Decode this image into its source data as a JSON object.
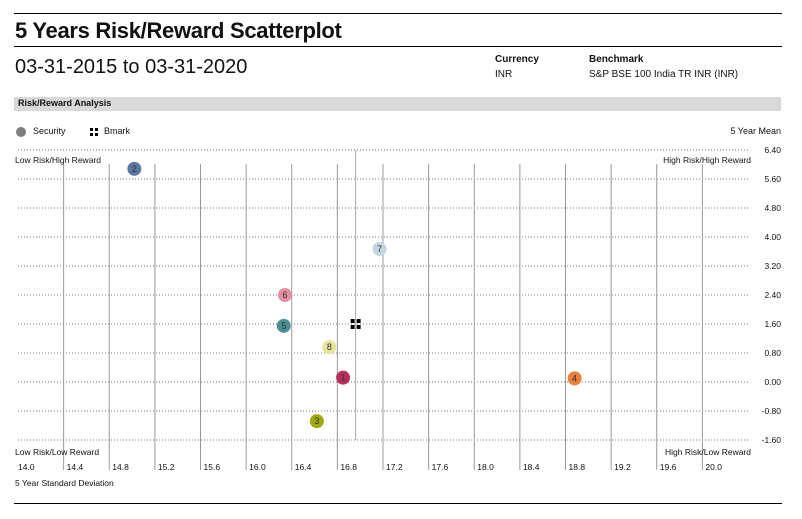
{
  "header": {
    "title": "5 Years Risk/Reward Scatterplot",
    "date_range": "03-31-2015 to 03-31-2020",
    "currency_label": "Currency",
    "currency_value": "INR",
    "benchmark_label": "Benchmark",
    "benchmark_value": "S&P BSE 100 India TR INR (INR)"
  },
  "section": {
    "title": "Risk/Reward Analysis"
  },
  "legend": {
    "security_label": "Security",
    "bmark_label": "Bmark",
    "mean_label": "5 Year Mean"
  },
  "colors": {
    "grid": "#777777",
    "mean_line": "#aaaaaa",
    "security_legend": "#7f7f7f",
    "bmark": "#000000"
  },
  "chart_data": {
    "type": "scatter",
    "xlabel": "5 Year Standard Deviation",
    "ylabel": "",
    "xlim": [
      14.0,
      20.4
    ],
    "ylim": [
      -1.6,
      6.4
    ],
    "x_ticks": [
      "14.0",
      "14.4",
      "14.8",
      "15.2",
      "15.6",
      "16.0",
      "16.4",
      "16.8",
      "17.2",
      "17.6",
      "18.0",
      "18.4",
      "18.8",
      "19.2",
      "19.6",
      "20.0"
    ],
    "y_ticks": [
      "6.40",
      "5.60",
      "4.80",
      "4.00",
      "3.20",
      "2.40",
      "1.60",
      "0.80",
      "0.00",
      "-0.80",
      "-1.60"
    ],
    "quadrant_labels": {
      "top_left": "Low Risk/High Reward",
      "top_right": "High Risk/High Reward",
      "bottom_left": "Low Risk/Low Reward",
      "bottom_right": "High Risk/Low Reward"
    },
    "mean_lines": {
      "x": 16.96,
      "y": 1.6
    },
    "benchmark": {
      "x": 16.96,
      "y": 1.6
    },
    "series": [
      {
        "points": [
          {
            "label": "1",
            "x": 16.85,
            "y": 0.12,
            "color": "#b5305f"
          },
          {
            "label": "2",
            "x": 15.02,
            "y": 5.88,
            "color": "#5b78a3"
          },
          {
            "label": "3",
            "x": 16.62,
            "y": -1.08,
            "color": "#a0a80f"
          },
          {
            "label": "4",
            "x": 18.88,
            "y": 0.1,
            "color": "#e6803a"
          },
          {
            "label": "5",
            "x": 16.33,
            "y": 1.55,
            "color": "#4b8e94"
          },
          {
            "label": "6",
            "x": 16.34,
            "y": 2.4,
            "color": "#e38fa4"
          },
          {
            "label": "7",
            "x": 17.17,
            "y": 3.67,
            "color": "#c6d4e2"
          },
          {
            "label": "8",
            "x": 16.73,
            "y": 0.96,
            "color": "#e6e39a"
          }
        ]
      }
    ]
  }
}
